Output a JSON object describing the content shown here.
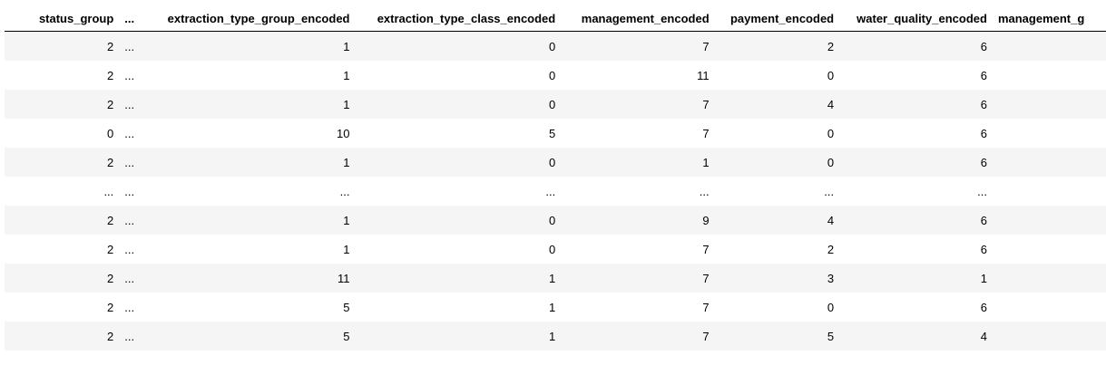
{
  "table": {
    "columns": [
      "status_group",
      "...",
      "extraction_type_group_encoded",
      "extraction_type_class_encoded",
      "management_encoded",
      "payment_encoded",
      "water_quality_encoded",
      "management_g"
    ],
    "rows": [
      [
        "2",
        "...",
        "1",
        "0",
        "7",
        "2",
        "6",
        ""
      ],
      [
        "2",
        "...",
        "1",
        "0",
        "11",
        "0",
        "6",
        ""
      ],
      [
        "2",
        "...",
        "1",
        "0",
        "7",
        "4",
        "6",
        ""
      ],
      [
        "0",
        "...",
        "10",
        "5",
        "7",
        "0",
        "6",
        ""
      ],
      [
        "2",
        "...",
        "1",
        "0",
        "1",
        "0",
        "6",
        ""
      ],
      [
        "...",
        "...",
        "...",
        "...",
        "...",
        "...",
        "...",
        ""
      ],
      [
        "2",
        "...",
        "1",
        "0",
        "9",
        "4",
        "6",
        ""
      ],
      [
        "2",
        "...",
        "1",
        "0",
        "7",
        "2",
        "6",
        ""
      ],
      [
        "2",
        "...",
        "11",
        "1",
        "7",
        "3",
        "1",
        ""
      ],
      [
        "2",
        "...",
        "5",
        "1",
        "7",
        "0",
        "6",
        ""
      ],
      [
        "2",
        "...",
        "5",
        "1",
        "7",
        "5",
        "4",
        ""
      ]
    ]
  }
}
